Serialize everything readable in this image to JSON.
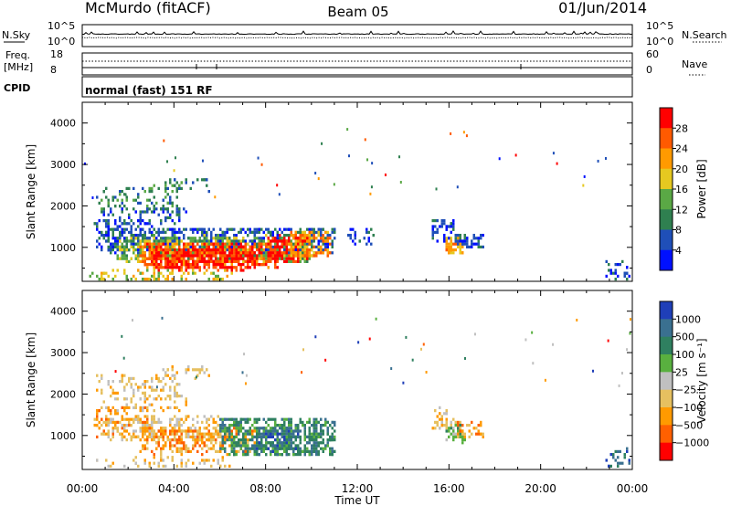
{
  "header": {
    "station": "McMurdo (fitACF)",
    "beam": "Beam 05",
    "date": "01/Jun/2014"
  },
  "noise_panel": {
    "left_label": "N.Sky",
    "right_label": "N.Search",
    "left_ticks": [
      "10^5",
      "10^0"
    ],
    "right_ticks": [
      "10^5",
      "10^0"
    ]
  },
  "freq_panel": {
    "left_label_line1": "Freq.",
    "left_label_line2": "[MHz]",
    "left_ticks": [
      "18",
      "8"
    ],
    "right_ticks": [
      "60",
      "0"
    ],
    "right_label": "Nave"
  },
  "cpid_panel": {
    "label": "CPID",
    "text": "normal (fast) 151 RF"
  },
  "chart_data": [
    {
      "type": "heatmap",
      "name": "power",
      "xlabel": "Time UT",
      "ylabel": "Slant Range [km]",
      "x_ticks": [
        "00:00",
        "04:00",
        "08:00",
        "12:00",
        "16:00",
        "20:00",
        "00:00"
      ],
      "x_range_hours": [
        0,
        24
      ],
      "y_ticks": [
        1000,
        2000,
        3000,
        4000
      ],
      "ylim": [
        180,
        4500
      ],
      "colorbar": {
        "label": "Power [dB]",
        "ticks": [
          "4",
          "8",
          "12",
          "16",
          "20",
          "24",
          "28"
        ],
        "colors": [
          "#0010ff",
          "#1f4fb8",
          "#2f8050",
          "#5aa845",
          "#e6c820",
          "#ff9a00",
          "#ff5a00",
          "#ff0000"
        ]
      },
      "regions": [
        {
          "x": [
            0.6,
            4.2
          ],
          "y": [
            1900,
            2500
          ],
          "level": 2,
          "density": 0.3
        },
        {
          "x": [
            3.5,
            5.5
          ],
          "y": [
            2400,
            2700
          ],
          "level": 2,
          "density": 0.35
        },
        {
          "x": [
            0.8,
            4.5
          ],
          "y": [
            1600,
            2000
          ],
          "level": 1,
          "density": 0.3
        },
        {
          "x": [
            0.5,
            3.0
          ],
          "y": [
            1000,
            1700
          ],
          "level": 1,
          "density": 0.45
        },
        {
          "x": [
            1.0,
            11.0
          ],
          "y": [
            900,
            1500
          ],
          "level": 1,
          "density": 0.7
        },
        {
          "x": [
            1.5,
            10.0
          ],
          "y": [
            700,
            1300
          ],
          "level": 3,
          "density": 0.75
        },
        {
          "x": [
            2.5,
            8.5
          ],
          "y": [
            550,
            1150
          ],
          "level": 6,
          "density": 0.95
        },
        {
          "x": [
            3.0,
            7.5
          ],
          "y": [
            500,
            1000
          ],
          "level": 7,
          "density": 0.95
        },
        {
          "x": [
            8.0,
            9.8
          ],
          "y": [
            700,
            1300
          ],
          "level": 7,
          "density": 0.9
        },
        {
          "x": [
            9.0,
            10.8
          ],
          "y": [
            800,
            1400
          ],
          "level": 5,
          "density": 0.8
        },
        {
          "x": [
            0.3,
            6.5
          ],
          "y": [
            180,
            500
          ],
          "level": 4,
          "density": 0.35
        },
        {
          "x": [
            11.5,
            12.8
          ],
          "y": [
            1100,
            1500
          ],
          "level": 1,
          "density": 0.3
        },
        {
          "x": [
            15.2,
            16.2
          ],
          "y": [
            1200,
            1700
          ],
          "level": 1,
          "density": 0.6
        },
        {
          "x": [
            15.8,
            16.6
          ],
          "y": [
            850,
            1300
          ],
          "level": 5,
          "density": 0.85
        },
        {
          "x": [
            16.2,
            17.5
          ],
          "y": [
            1000,
            1350
          ],
          "level": 1,
          "density": 0.7
        },
        {
          "x": [
            22.8,
            23.8
          ],
          "y": [
            250,
            700
          ],
          "level": 1,
          "density": 0.4
        }
      ]
    },
    {
      "type": "heatmap",
      "name": "velocity",
      "xlabel": "Time UT",
      "ylabel": "Slant Range [km]",
      "x_ticks": [
        "00:00",
        "04:00",
        "08:00",
        "12:00",
        "16:00",
        "20:00",
        "00:00"
      ],
      "x_range_hours": [
        0,
        24
      ],
      "y_ticks": [
        1000,
        2000,
        3000,
        4000
      ],
      "ylim": [
        180,
        4500
      ],
      "colorbar": {
        "label": "Velocity [m s⁻¹]",
        "ticks": [
          "1000",
          "500",
          "100",
          "25",
          "−25",
          "−100",
          "−500",
          "−1000"
        ],
        "colors": [
          "#1f3fb8",
          "#3a7090",
          "#2f8060",
          "#59b03f",
          "#c0c0c0",
          "#e6c060",
          "#ff9a00",
          "#ff6000",
          "#ff0000"
        ]
      },
      "regions": [
        {
          "x": [
            0.6,
            4.2
          ],
          "y": [
            1900,
            2500
          ],
          "level": 5,
          "density": 0.3
        },
        {
          "x": [
            3.5,
            5.5
          ],
          "y": [
            2400,
            2700
          ],
          "level": 5,
          "density": 0.35
        },
        {
          "x": [
            0.8,
            4.5
          ],
          "y": [
            1600,
            2000
          ],
          "level": 5,
          "density": 0.3
        },
        {
          "x": [
            0.5,
            3.0
          ],
          "y": [
            1000,
            1700
          ],
          "level": 6,
          "density": 0.35
        },
        {
          "x": [
            1.0,
            6.0
          ],
          "y": [
            900,
            1500
          ],
          "level": 5,
          "density": 0.55
        },
        {
          "x": [
            2.5,
            7.5
          ],
          "y": [
            600,
            1200
          ],
          "level": 6,
          "density": 0.65
        },
        {
          "x": [
            6.0,
            11.0
          ],
          "y": [
            550,
            1450
          ],
          "level": 2,
          "density": 0.9
        },
        {
          "x": [
            7.5,
            9.5
          ],
          "y": [
            650,
            1200
          ],
          "level": 1,
          "density": 0.6
        },
        {
          "x": [
            0.3,
            6.5
          ],
          "y": [
            180,
            500
          ],
          "level": 5,
          "density": 0.3
        },
        {
          "x": [
            15.2,
            16.2
          ],
          "y": [
            1200,
            1700
          ],
          "level": 5,
          "density": 0.5
        },
        {
          "x": [
            15.8,
            16.6
          ],
          "y": [
            850,
            1300
          ],
          "level": 3,
          "density": 0.75
        },
        {
          "x": [
            16.3,
            17.5
          ],
          "y": [
            1000,
            1350
          ],
          "level": 6,
          "density": 0.6
        },
        {
          "x": [
            22.8,
            23.8
          ],
          "y": [
            250,
            700
          ],
          "level": 1,
          "density": 0.4
        }
      ]
    }
  ],
  "colors": {
    "axis": "#000000",
    "background": "#ffffff"
  }
}
